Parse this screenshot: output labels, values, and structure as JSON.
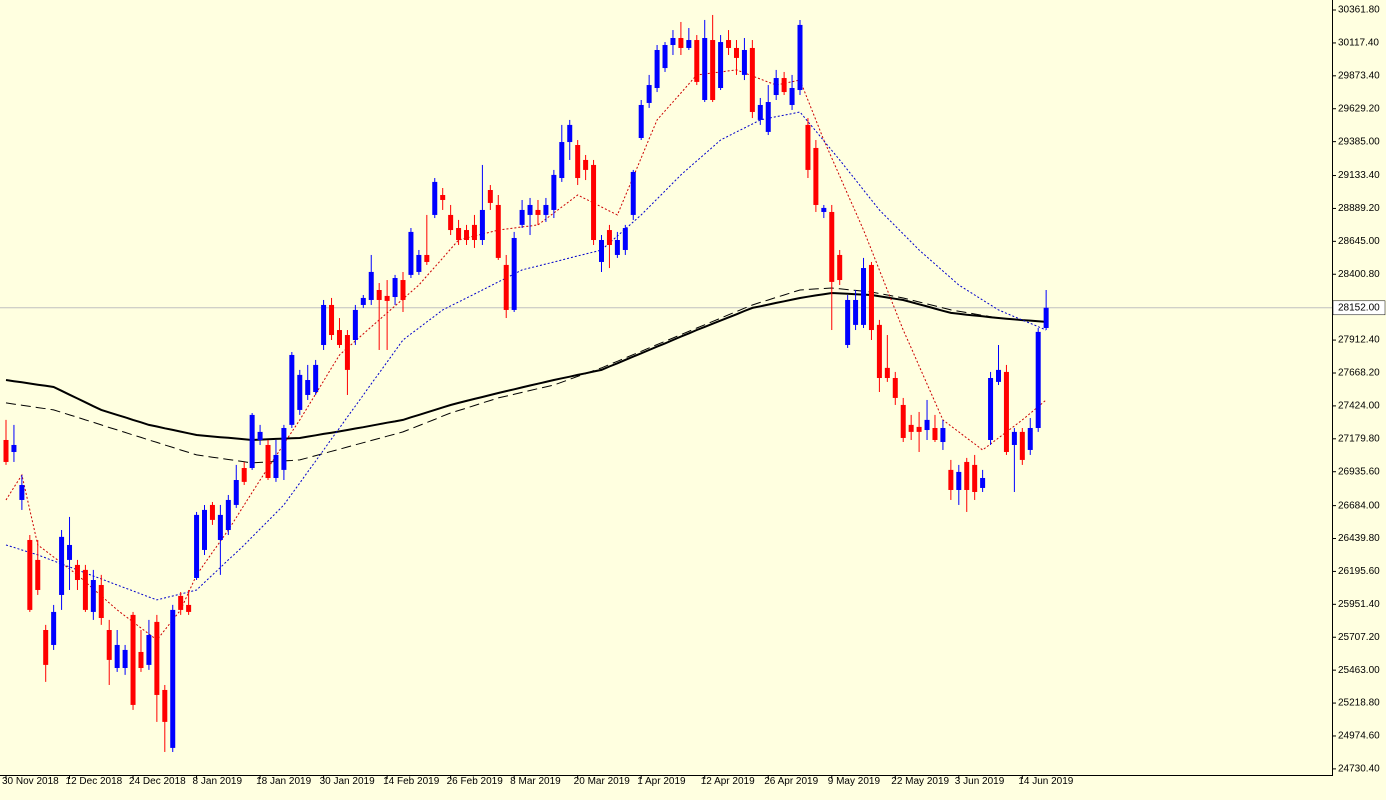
{
  "chart_data": {
    "type": "candlestick",
    "categories": [
      "30 Nov 2018",
      null,
      null,
      null,
      null,
      null,
      null,
      null,
      "12 Dec 2018",
      null,
      null,
      null,
      null,
      null,
      null,
      null,
      "24 Dec 2018",
      null,
      null,
      null,
      null,
      null,
      null,
      null,
      "8 Jan 2019",
      null,
      null,
      null,
      null,
      null,
      null,
      null,
      "18 Jan 2019",
      null,
      null,
      null,
      null,
      null,
      null,
      null,
      "30 Jan 2019",
      null,
      null,
      null,
      null,
      null,
      null,
      null,
      "14 Feb 2019",
      null,
      null,
      null,
      null,
      null,
      null,
      null,
      "26 Feb 2019",
      null,
      null,
      null,
      null,
      null,
      null,
      null,
      "8 Mar 2019",
      null,
      null,
      null,
      null,
      null,
      null,
      null,
      "20 Mar 2019",
      null,
      null,
      null,
      null,
      null,
      null,
      null,
      "1 Apr 2019",
      null,
      null,
      null,
      null,
      null,
      null,
      null,
      "12 Apr 2019",
      null,
      null,
      null,
      null,
      null,
      null,
      null,
      "26 Apr 2019",
      null,
      null,
      null,
      null,
      null,
      null,
      null,
      "9 May 2019",
      null,
      null,
      null,
      null,
      null,
      null,
      null,
      "22 May 2019",
      null,
      null,
      null,
      null,
      null,
      null,
      null,
      "3 Jun 2019",
      null,
      null,
      null,
      null,
      null,
      null,
      null,
      "14 Jun 2019",
      null,
      null,
      null
    ],
    "open": [
      27171,
      27082,
      26726,
      26429,
      26281,
      25761,
      25650,
      26021,
      26281,
      26244,
      26207,
      25895,
      26095,
      25761,
      25479,
      25479,
      25873,
      25598,
      25502,
      25821,
      25316,
      24886,
      26014,
      25947,
      26147,
      26355,
      26689,
      26429,
      26503,
      26689,
      26963,
      26963,
      27171,
      27134,
      26889,
      26949,
      27283,
      27394,
      27505,
      27527,
      27876,
      28173,
      27987,
      27950,
      27913,
      28173,
      28210,
      28284,
      28240,
      28232,
      28358,
      28396,
      28418,
      28544,
      28841,
      28989,
      28841,
      28744,
      28729,
      28767,
      28655,
      29026,
      28915,
      28470,
      28136,
      28767,
      28841,
      28878,
      28841,
      28878,
      29115,
      29382,
      29360,
      29249,
      29212,
      28492,
      28729,
      28544,
      28581,
      28841,
      29412,
      29672,
      29783,
      29931,
      30102,
      30154,
      30080,
      30139,
      29694,
      30139,
      29783,
      30139,
      30080,
      29880,
      30080,
      29546,
      29457,
      29731,
      29857,
      29657,
      29768,
      29509,
      29338,
      28863,
      28863,
      28544,
      27876,
      28025,
      28025,
      28470,
      28025,
      27706,
      27631,
      27431,
      27283,
      27268,
      27245,
      27260,
      27156,
      26949,
      26800,
      27008,
      26986,
      26815,
      27171,
      27602,
      27676,
      27134,
      27231,
      27097,
      27260,
      28002
    ],
    "high": [
      27320,
      27283,
      26911,
      26466,
      26429,
      25799,
      25947,
      26503,
      26600,
      26281,
      26244,
      26207,
      26170,
      25836,
      25761,
      25650,
      25895,
      25761,
      25836,
      25873,
      25353,
      25947,
      26043,
      26058,
      26637,
      26689,
      26711,
      26689,
      26763,
      26986,
      27008,
      27371,
      27283,
      27171,
      27171,
      27283,
      27824,
      27691,
      27728,
      27765,
      28210,
      28225,
      28076,
      27987,
      28173,
      28247,
      28544,
      28336,
      28358,
      28396,
      28418,
      28744,
      28581,
      28841,
      29115,
      29041,
      28915,
      28804,
      28767,
      28841,
      29212,
      29063,
      28989,
      28544,
      28715,
      28952,
      28967,
      28952,
      28967,
      29175,
      29509,
      29546,
      29397,
      29286,
      29249,
      28692,
      28767,
      28715,
      28767,
      29175,
      29694,
      29880,
      30102,
      30124,
      30213,
      30273,
      30228,
      30176,
      30288,
      30325,
      30176,
      30213,
      30139,
      30154,
      30139,
      29709,
      29805,
      29917,
      29902,
      29880,
      30288,
      29560,
      29397,
      28915,
      28915,
      28581,
      28247,
      28284,
      28522,
      28492,
      28062,
      27950,
      27676,
      27483,
      27357,
      27379,
      27468,
      27357,
      27320,
      27023,
      26986,
      27038,
      27060,
      26949,
      27676,
      27876,
      27728,
      27260,
      27260,
      27334,
      28002,
      28284
    ],
    "low": [
      26986,
      27008,
      26652,
      25895,
      26021,
      25376,
      25613,
      25910,
      26058,
      26058,
      25895,
      25836,
      25799,
      25353,
      25450,
      25428,
      25168,
      25450,
      25465,
      25079,
      24856,
      24856,
      25873,
      25873,
      26132,
      26318,
      26541,
      26170,
      26466,
      26667,
      26837,
      26949,
      27134,
      26874,
      26860,
      26874,
      27260,
      27357,
      27468,
      27505,
      27839,
      27913,
      27854,
      27505,
      27876,
      28151,
      28173,
      27839,
      27839,
      28173,
      28121,
      28373,
      28396,
      28470,
      28818,
      28878,
      28692,
      28618,
      28618,
      28596,
      28618,
      28878,
      28507,
      28076,
      28121,
      28744,
      28692,
      28767,
      28789,
      28818,
      29086,
      29249,
      29063,
      29100,
      28618,
      28418,
      28447,
      28522,
      28544,
      28804,
      29397,
      29635,
      29753,
      29902,
      30028,
      30028,
      30065,
      29805,
      29679,
      29679,
      29768,
      30028,
      29880,
      29842,
      29560,
      29509,
      29434,
      29694,
      29731,
      29620,
      29731,
      29115,
      28863,
      28818,
      27987,
      28321,
      27854,
      27987,
      28002,
      27913,
      27527,
      27602,
      27431,
      27156,
      27171,
      27082,
      27171,
      27156,
      27097,
      26726,
      26689,
      26637,
      26726,
      26785,
      27134,
      27579,
      27060,
      26785,
      26986,
      27060,
      27231,
      27987
    ],
    "close": [
      27008,
      27134,
      26837,
      25910,
      26058,
      25502,
      25895,
      26452,
      26392,
      26132,
      25910,
      26132,
      25850,
      25539,
      25650,
      25613,
      25205,
      25479,
      25724,
      25279,
      25079,
      25910,
      25910,
      25895,
      26615,
      26652,
      26578,
      26615,
      26726,
      26874,
      26860,
      27357,
      27231,
      26889,
      27060,
      27260,
      27802,
      27654,
      27616,
      27728,
      28173,
      27950,
      27876,
      27691,
      28136,
      28225,
      28418,
      28210,
      28203,
      28373,
      28210,
      28715,
      28544,
      28492,
      29086,
      28952,
      28729,
      28655,
      28655,
      28655,
      28878,
      28930,
      28522,
      28136,
      28670,
      28878,
      28915,
      28841,
      28915,
      29138,
      29382,
      29509,
      29115,
      29175,
      28655,
      28655,
      28618,
      28655,
      28744,
      29160,
      29657,
      29805,
      30065,
      30102,
      30154,
      30080,
      30139,
      29828,
      30154,
      29694,
      30124,
      30080,
      30006,
      30065,
      29605,
      29657,
      29679,
      29857,
      29753,
      29783,
      30251,
      29175,
      28915,
      28893,
      28344,
      28358,
      28210,
      28210,
      28447,
      27987,
      27631,
      27631,
      27483,
      27186,
      27231,
      27231,
      27320,
      27171,
      27260,
      26800,
      26934,
      26800,
      26785,
      26889,
      27631,
      27691,
      27082,
      27231,
      27023,
      27260,
      27973,
      28152
    ],
    "up_color": "#0000ff",
    "down_color": "#ff0000",
    "lines": [
      {
        "color": "#000000",
        "style": "solid",
        "values": [
          27616,
          27607,
          27599,
          27590,
          27581,
          27573,
          27564,
          27536,
          27507,
          27479,
          27451,
          27422,
          27394,
          27376,
          27357,
          27339,
          27320,
          27302,
          27283,
          27271,
          27258,
          27246,
          27233,
          27221,
          27208,
          27203,
          27197,
          27192,
          27187,
          27182,
          27176,
          27171,
          27174,
          27176,
          27179,
          27181,
          27184,
          27186,
          27196,
          27206,
          27216,
          27225,
          27235,
          27245,
          27256,
          27266,
          27277,
          27288,
          27299,
          27309,
          27320,
          27339,
          27357,
          27376,
          27394,
          27413,
          27431,
          27446,
          27461,
          27476,
          27490,
          27505,
          27520,
          27534,
          27547,
          27561,
          27575,
          27589,
          27602,
          27616,
          27629,
          27641,
          27654,
          27666,
          27679,
          27691,
          27716,
          27740,
          27765,
          27790,
          27814,
          27839,
          27864,
          27888,
          27913,
          27938,
          27962,
          27987,
          28010,
          28034,
          28057,
          28081,
          28104,
          28128,
          28151,
          28163,
          28176,
          28188,
          28200,
          28213,
          28225,
          28234,
          28244,
          28253,
          28262,
          28259,
          28256,
          28253,
          28250,
          28247,
          28238,
          28228,
          28219,
          28210,
          28194,
          28178,
          28162,
          28146,
          28130,
          28114,
          28108,
          28101,
          28095,
          28089,
          28082,
          28076,
          28071,
          28066,
          28061,
          28057,
          28052,
          28047
        ]
      },
      {
        "color": "#000000",
        "style": "dashed",
        "values": [
          27446,
          27437,
          27429,
          27420,
          27411,
          27403,
          27394,
          27376,
          27357,
          27339,
          27320,
          27302,
          27283,
          27264,
          27246,
          27227,
          27208,
          27190,
          27171,
          27153,
          27134,
          27116,
          27097,
          27079,
          27060,
          27052,
          27043,
          27035,
          27026,
          27018,
          27009,
          27001,
          27005,
          27008,
          27012,
          27016,
          27019,
          27023,
          27039,
          27055,
          27071,
          27087,
          27103,
          27119,
          27135,
          27151,
          27167,
          27183,
          27199,
          27215,
          27231,
          27254,
          27278,
          27301,
          27324,
          27348,
          27371,
          27390,
          27408,
          27427,
          27446,
          27464,
          27483,
          27497,
          27510,
          27524,
          27538,
          27552,
          27565,
          27579,
          27600,
          27621,
          27643,
          27664,
          27685,
          27706,
          27731,
          27755,
          27780,
          27805,
          27829,
          27854,
          27879,
          27903,
          27928,
          27953,
          27977,
          28002,
          28026,
          28051,
          28075,
          28100,
          28124,
          28149,
          28173,
          28192,
          28210,
          28229,
          28247,
          28266,
          28284,
          28288,
          28292,
          28295,
          28299,
          28293,
          28287,
          28281,
          28275,
          28269,
          28258,
          28247,
          28236,
          28225,
          28210,
          28195,
          28181,
          28166,
          28151,
          28136,
          28126,
          28116,
          28106,
          28096,
          28086,
          28076,
          28071,
          28066,
          28061,
          28057,
          28052,
          28047
        ]
      },
      {
        "color": "#cc0000",
        "style": "dotted",
        "values": [
          26726,
          26819,
          26911,
          26652,
          26392,
          26348,
          26303,
          26259,
          26214,
          26170,
          26118,
          26066,
          26014,
          25962,
          25910,
          25865,
          25821,
          25776,
          25732,
          25687,
          25761,
          25836,
          25910,
          26040,
          26170,
          26253,
          26337,
          26420,
          26503,
          26596,
          26689,
          26781,
          26874,
          26963,
          27052,
          27142,
          27231,
          27320,
          27416,
          27513,
          27609,
          27706,
          27802,
          27854,
          27906,
          27958,
          28010,
          28062,
          28114,
          28166,
          28217,
          28269,
          28321,
          28388,
          28455,
          28521,
          28588,
          28655,
          28670,
          28685,
          28699,
          28714,
          28729,
          28737,
          28744,
          28752,
          28759,
          28767,
          28811,
          28856,
          28900,
          28944,
          28989,
          28959,
          28930,
          28900,
          28870,
          28841,
          28982,
          29123,
          29264,
          29405,
          29546,
          29613,
          29680,
          29746,
          29813,
          29880,
          29887,
          29895,
          29902,
          29910,
          29917,
          29895,
          29872,
          29850,
          29827,
          29805,
          29817,
          29830,
          29842,
          29694,
          29545,
          29397,
          29263,
          29130,
          28996,
          28863,
          28729,
          28581,
          28432,
          28284,
          28135,
          27987,
          27854,
          27720,
          27587,
          27453,
          27320,
          27275,
          27231,
          27186,
          27142,
          27097,
          27142,
          27186,
          27231,
          27275,
          27320,
          27369,
          27419,
          27468
        ]
      },
      {
        "color": "#0000cc",
        "style": "dotted",
        "values": [
          26392,
          26374,
          26355,
          26337,
          26318,
          26296,
          26274,
          26251,
          26229,
          26207,
          26185,
          26162,
          26140,
          26117,
          26095,
          26073,
          26051,
          26028,
          26006,
          25984,
          25999,
          26013,
          26028,
          26043,
          26058,
          26114,
          26169,
          26225,
          26281,
          26336,
          26392,
          26451,
          26511,
          26570,
          26630,
          26689,
          26771,
          26852,
          26934,
          27015,
          27097,
          27179,
          27260,
          27342,
          27423,
          27505,
          27587,
          27668,
          27750,
          27831,
          27913,
          27958,
          28002,
          28047,
          28091,
          28136,
          28166,
          28195,
          28225,
          28254,
          28284,
          28314,
          28344,
          28373,
          28403,
          28433,
          28448,
          28462,
          28477,
          28492,
          28507,
          28522,
          28537,
          28551,
          28566,
          28581,
          28633,
          28685,
          28737,
          28789,
          28841,
          28900,
          28960,
          29019,
          29079,
          29138,
          29190,
          29242,
          29293,
          29345,
          29397,
          29427,
          29457,
          29486,
          29516,
          29546,
          29558,
          29570,
          29581,
          29593,
          29605,
          29534,
          29463,
          29391,
          29320,
          29249,
          29175,
          29101,
          29026,
          28952,
          28878,
          28819,
          28759,
          28700,
          28640,
          28581,
          28529,
          28477,
          28425,
          28373,
          28321,
          28284,
          28247,
          28210,
          28173,
          28136,
          28111,
          28086,
          28061,
          28037,
          28012,
          27987
        ]
      }
    ],
    "last_price": {
      "value": 28152,
      "label": "28152.00"
    },
    "ylim": [
      24685,
      30436
    ],
    "yticks": [
      {
        "value": 30361.8,
        "label": "30361.80"
      },
      {
        "value": 30117.4,
        "label": "30117.40"
      },
      {
        "value": 29873.4,
        "label": "29873.40"
      },
      {
        "value": 29629.2,
        "label": "29629.20"
      },
      {
        "value": 29385,
        "label": "29385.00"
      },
      {
        "value": 29133.4,
        "label": "29133.40"
      },
      {
        "value": 28889.2,
        "label": "28889.20"
      },
      {
        "value": 28645,
        "label": "28645.00"
      },
      {
        "value": 28400.8,
        "label": "28400.80"
      },
      {
        "value": 27912.4,
        "label": "27912.40"
      },
      {
        "value": 27668.2,
        "label": "27668.20"
      },
      {
        "value": 27424,
        "label": "27424.00"
      },
      {
        "value": 27179.8,
        "label": "27179.80"
      },
      {
        "value": 26935.6,
        "label": "26935.60"
      },
      {
        "value": 26684,
        "label": "26684.00"
      },
      {
        "value": 26439.8,
        "label": "26439.80"
      },
      {
        "value": 26195.6,
        "label": "26195.60"
      },
      {
        "value": 25951.4,
        "label": "25951.40"
      },
      {
        "value": 25707.2,
        "label": "25707.20"
      },
      {
        "value": 25463,
        "label": "25463.00"
      },
      {
        "value": 25218.8,
        "label": "25218.80"
      },
      {
        "value": 24974.6,
        "label": "24974.60"
      },
      {
        "value": 24730.4,
        "label": "24730.40"
      }
    ],
    "grid": false
  }
}
